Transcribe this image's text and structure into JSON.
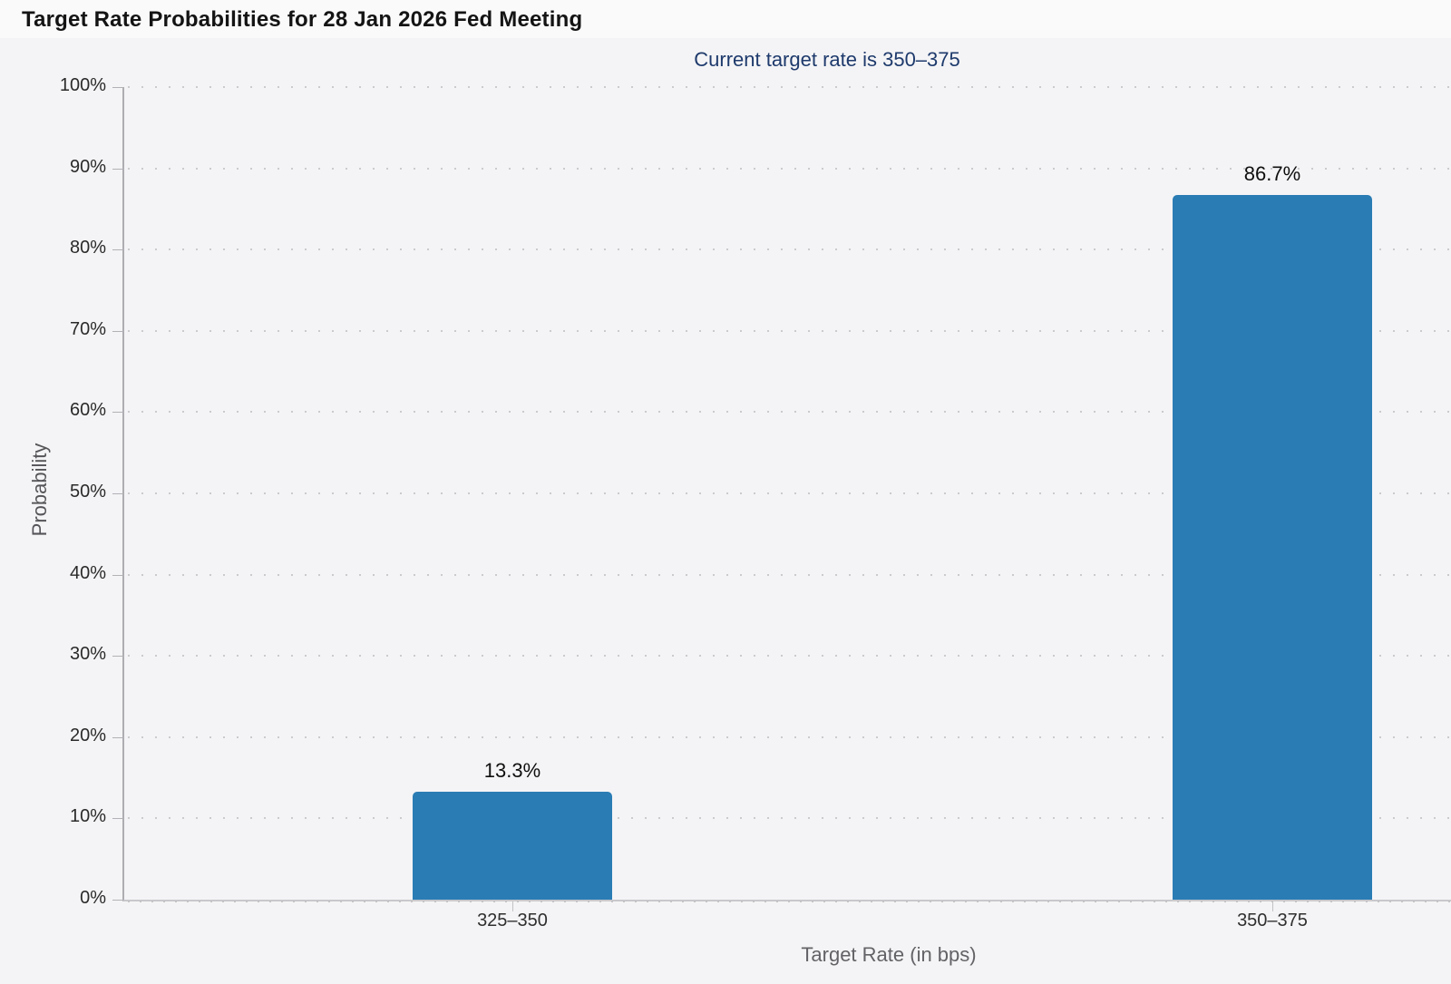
{
  "header": {
    "title": "Target Rate Probabilities for 28 Jan 2026 Fed Meeting",
    "subtitle": "Current target rate is 350–375"
  },
  "chart_data": {
    "type": "bar",
    "title": "Target Rate Probabilities for 28 Jan 2026 Fed Meeting",
    "subtitle": "Current target rate is 350–375",
    "categories": [
      "325–350",
      "350–375"
    ],
    "values": [
      13.3,
      86.7
    ],
    "value_labels": [
      "13.3%",
      "86.7%"
    ],
    "xlabel": "Target Rate (in bps)",
    "ylabel": "Probability",
    "ylim": [
      0,
      100
    ],
    "y_tick_labels": [
      "0%",
      "10%",
      "20%",
      "30%",
      "40%",
      "50%",
      "60%",
      "70%",
      "80%",
      "90%",
      "100%"
    ],
    "grid": "horizontal-dotted",
    "legend": "none",
    "bar_color": "#2a7cb4"
  },
  "colors": {
    "background": "#f4f4f6",
    "bar": "#2a7cb4",
    "subtitle_text": "#1e3a6c",
    "gridline": "#cbcbce",
    "axis_line": "#c9c9cc"
  }
}
